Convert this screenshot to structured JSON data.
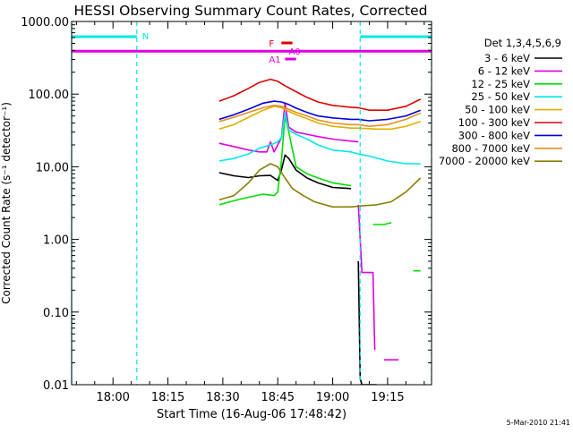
{
  "chart_data": {
    "type": "line",
    "title": "HESSI Observing Summary Count Rates, Corrected",
    "ylabel": "Corrected Count Rate (s⁻¹ detector⁻¹)",
    "xlabel": "Start Time (16-Aug-06 17:48:42)",
    "footer": "5-Mar-2010 21:41",
    "y_scale": "log",
    "ylim": [
      0.01,
      1000
    ],
    "y_ticks": [
      {
        "v": 1000,
        "label": "1000.00"
      },
      {
        "v": 100,
        "label": "100.00"
      },
      {
        "v": 10,
        "label": "10.00"
      },
      {
        "v": 1,
        "label": "1.00"
      },
      {
        "v": 0.1,
        "label": "0.10"
      },
      {
        "v": 0.01,
        "label": "0.01"
      }
    ],
    "xlim": [
      "17:48:42",
      "19:27"
    ],
    "x_ticks": [
      {
        "t": "18:00",
        "label": "18:00"
      },
      {
        "t": "18:15",
        "label": "18:15"
      },
      {
        "t": "18:30",
        "label": "18:30"
      },
      {
        "t": "18:45",
        "label": "18:45"
      },
      {
        "t": "19:00",
        "label": "19:00"
      },
      {
        "t": "19:15",
        "label": "19:15"
      }
    ],
    "legend": {
      "title": "Det 1,3,4,5,6,9",
      "placement": "right",
      "entries": [
        {
          "label": "3 - 6 keV",
          "color": "#000000"
        },
        {
          "label": "6 - 12 keV",
          "color": "#e000e0"
        },
        {
          "label": "12 - 25 keV",
          "color": "#00e000"
        },
        {
          "label": "25 - 50 keV",
          "color": "#00e8e8"
        },
        {
          "label": "50 - 100 keV",
          "color": "#e0b000"
        },
        {
          "label": "100 - 300 keV",
          "color": "#e00000"
        },
        {
          "label": "300 - 800 keV",
          "color": "#0000e0"
        },
        {
          "label": "800 - 7000 keV",
          "color": "#e89020"
        },
        {
          "label": "7000 - 20000 keV",
          "color": "#888000"
        }
      ]
    },
    "annotations": {
      "night_label": "N",
      "night_intervals": [
        [
          "17:48:42",
          "18:06:30"
        ],
        [
          "19:07:30",
          "19:27"
        ]
      ],
      "saa_level": 390,
      "flare_label": "F",
      "flare_interval": [
        "18:46",
        "18:49"
      ],
      "a0_label": "A0",
      "a0_interval": [
        "18:49",
        "18:50"
      ],
      "a1_label": "A1",
      "a1_interval": [
        "18:47",
        "18:50"
      ]
    },
    "series": [
      {
        "name": "3 - 6 keV",
        "color": "#000000",
        "x": [
          "18:29",
          "18:33",
          "18:37",
          "18:40",
          "18:43",
          "18:45",
          "18:46",
          "18:47",
          "18:48",
          "18:50",
          "18:53",
          "18:56",
          "19:00",
          "19:05"
        ],
        "y": [
          8.3,
          7.5,
          7.1,
          7.5,
          7.6,
          6.5,
          9.0,
          14.5,
          13,
          9,
          7,
          6,
          5.2,
          5.0
        ]
      },
      {
        "name": "3 - 6 keV",
        "color": "#000000",
        "x": [
          "19:07",
          "19:07.5",
          "19:08",
          "19:10",
          "19:12"
        ],
        "y": [
          0.5,
          0.012,
          0.01,
          0.01,
          0.01
        ]
      },
      {
        "name": "6 - 12 keV",
        "color": "#e000e0",
        "x": [
          "18:29",
          "18:33",
          "18:37",
          "18:40",
          "18:42",
          "18:43",
          "18:44",
          "18:46",
          "18:47",
          "18:48",
          "18:50",
          "18:53",
          "18:56",
          "19:00",
          "19:07"
        ],
        "y": [
          21,
          19,
          17,
          16,
          16,
          22,
          16,
          25,
          75,
          35,
          30,
          28,
          26,
          24,
          22
        ]
      },
      {
        "name": "6 - 12 keV",
        "color": "#e000e0",
        "x": [
          "19:07",
          "19:08",
          "19:08.5",
          "19:10",
          "19:11",
          "19:11.5"
        ],
        "y": [
          3,
          0.35,
          0.35,
          0.35,
          0.35,
          0.03
        ]
      },
      {
        "name": "6 - 12 keV",
        "color": "#e000e0",
        "x": [
          "19:14",
          "19:18"
        ],
        "y": [
          0.022,
          0.022
        ]
      },
      {
        "name": "12 - 25 keV",
        "color": "#00e000",
        "x": [
          "18:29",
          "18:33",
          "18:37",
          "18:41",
          "18:44",
          "18:45",
          "18:46",
          "18:47",
          "18:48",
          "18:50",
          "18:53",
          "18:56",
          "19:00",
          "19:05"
        ],
        "y": [
          3,
          3.4,
          3.8,
          4.2,
          4.0,
          4.5,
          12,
          50,
          30,
          10,
          8,
          7,
          6,
          5.5
        ]
      },
      {
        "name": "12 - 25 keV",
        "color": "#00e000",
        "x": [
          "19:11",
          "19:14",
          "19:16"
        ],
        "y": [
          1.6,
          1.6,
          1.7
        ]
      },
      {
        "name": "12 - 25 keV",
        "color": "#00e000",
        "x": [
          "19:22",
          "19:24"
        ],
        "y": [
          0.37,
          0.37
        ]
      },
      {
        "name": "25 - 50 keV",
        "color": "#00e8e8",
        "x": [
          "18:29",
          "18:33",
          "18:37",
          "18:40",
          "18:43",
          "18:45",
          "18:46",
          "18:47",
          "18:48",
          "18:50",
          "18:53",
          "18:56",
          "19:00",
          "19:05",
          "19:07",
          "19:10",
          "19:15",
          "19:20",
          "19:24"
        ],
        "y": [
          12,
          13,
          15,
          18,
          20,
          22,
          25,
          55,
          32,
          28,
          24,
          20,
          17,
          16,
          15,
          14,
          12,
          11,
          11
        ]
      },
      {
        "name": "50 - 100 keV",
        "color": "#e0b000",
        "x": [
          "18:29",
          "18:33",
          "18:37",
          "18:41",
          "18:44",
          "18:46",
          "18:48",
          "18:50",
          "18:53",
          "18:56",
          "19:00",
          "19:05",
          "19:07",
          "19:12",
          "19:16",
          "19:20",
          "19:24"
        ],
        "y": [
          33,
          38,
          48,
          60,
          68,
          65,
          58,
          52,
          46,
          40,
          36,
          34,
          34,
          33,
          33,
          36,
          42
        ]
      },
      {
        "name": "100 - 300 keV",
        "color": "#e00000",
        "x": [
          "18:29",
          "18:33",
          "18:37",
          "18:40",
          "18:43",
          "18:45",
          "18:47",
          "18:50",
          "18:53",
          "18:56",
          "19:00",
          "19:05",
          "19:07",
          "19:10",
          "19:15",
          "19:20",
          "19:24"
        ],
        "y": [
          80,
          95,
          120,
          145,
          160,
          150,
          130,
          108,
          90,
          78,
          70,
          66,
          65,
          60,
          60,
          68,
          85
        ]
      },
      {
        "name": "300 - 800 keV",
        "color": "#0000e0",
        "x": [
          "18:29",
          "18:33",
          "18:37",
          "18:41",
          "18:44",
          "18:46",
          "18:48",
          "18:50",
          "18:53",
          "18:56",
          "19:00",
          "19:05",
          "19:07",
          "19:10",
          "19:15",
          "19:20",
          "19:24"
        ],
        "y": [
          45,
          52,
          62,
          75,
          80,
          78,
          72,
          64,
          56,
          50,
          47,
          45,
          45,
          43,
          45,
          50,
          60
        ]
      },
      {
        "name": "800 - 7000 keV",
        "color": "#e89020",
        "x": [
          "18:29",
          "18:33",
          "18:37",
          "18:41",
          "18:44",
          "18:46",
          "18:48",
          "18:50",
          "18:53",
          "18:56",
          "19:00",
          "19:05",
          "19:07",
          "19:10",
          "19:15",
          "19:20",
          "19:24"
        ],
        "y": [
          42,
          48,
          56,
          65,
          70,
          68,
          62,
          56,
          50,
          44,
          40,
          38,
          38,
          36,
          38,
          45,
          55
        ]
      },
      {
        "name": "7000 - 20000 keV",
        "color": "#888000",
        "x": [
          "18:29",
          "18:33",
          "18:37",
          "18:40",
          "18:43",
          "18:45",
          "18:47",
          "18:49",
          "18:52",
          "18:55",
          "19:00",
          "19:05",
          "19:08",
          "19:12",
          "19:16",
          "19:20",
          "19:24"
        ],
        "y": [
          3.5,
          4,
          6,
          9,
          11,
          10,
          7,
          5,
          4,
          3.3,
          2.8,
          2.8,
          2.9,
          3.0,
          3.3,
          4.5,
          7
        ]
      }
    ]
  }
}
